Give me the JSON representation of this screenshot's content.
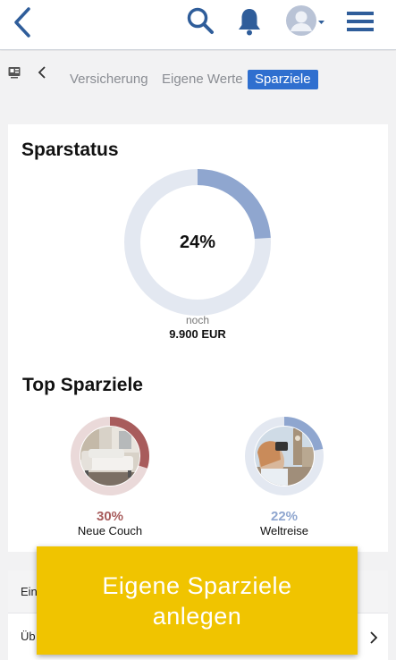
{
  "colors": {
    "accent": "#2f6fcf",
    "ring_track": "#e3e8f1",
    "ring_fill": "#8fa6cf",
    "couch": "#a85c5c",
    "couch_track": "#ead9d9",
    "cta": "#f0c400"
  },
  "header": {
    "icons": [
      "back-icon",
      "search-icon",
      "bell-icon",
      "avatar-icon",
      "menu-icon"
    ]
  },
  "subnav": {
    "tabs": [
      {
        "label": "Versicherung",
        "active": false
      },
      {
        "label": "Eigene Werte",
        "active": false
      },
      {
        "label": "Sparziele",
        "active": true
      }
    ]
  },
  "sparstatus": {
    "title": "Sparstatus",
    "percent_value": 24,
    "percent_label": "24%",
    "remaining_prefix": "noch",
    "remaining_amount": "9.900 EUR"
  },
  "top_sparziele": {
    "title": "Top Sparziele",
    "goals": [
      {
        "name": "Neue Couch",
        "percent_label": "30%",
        "percent_value": 30,
        "color": "#a85c5c",
        "icon": "couch-photo"
      },
      {
        "name": "Weltreise",
        "percent_label": "22%",
        "percent_value": 22,
        "color": "#8fa6cf",
        "icon": "travel-photo"
      }
    ]
  },
  "list": {
    "head_label": "Ein",
    "row_label": "Üb"
  },
  "cta": {
    "line1": "Eigene Sparziele",
    "line2": "anlegen"
  }
}
